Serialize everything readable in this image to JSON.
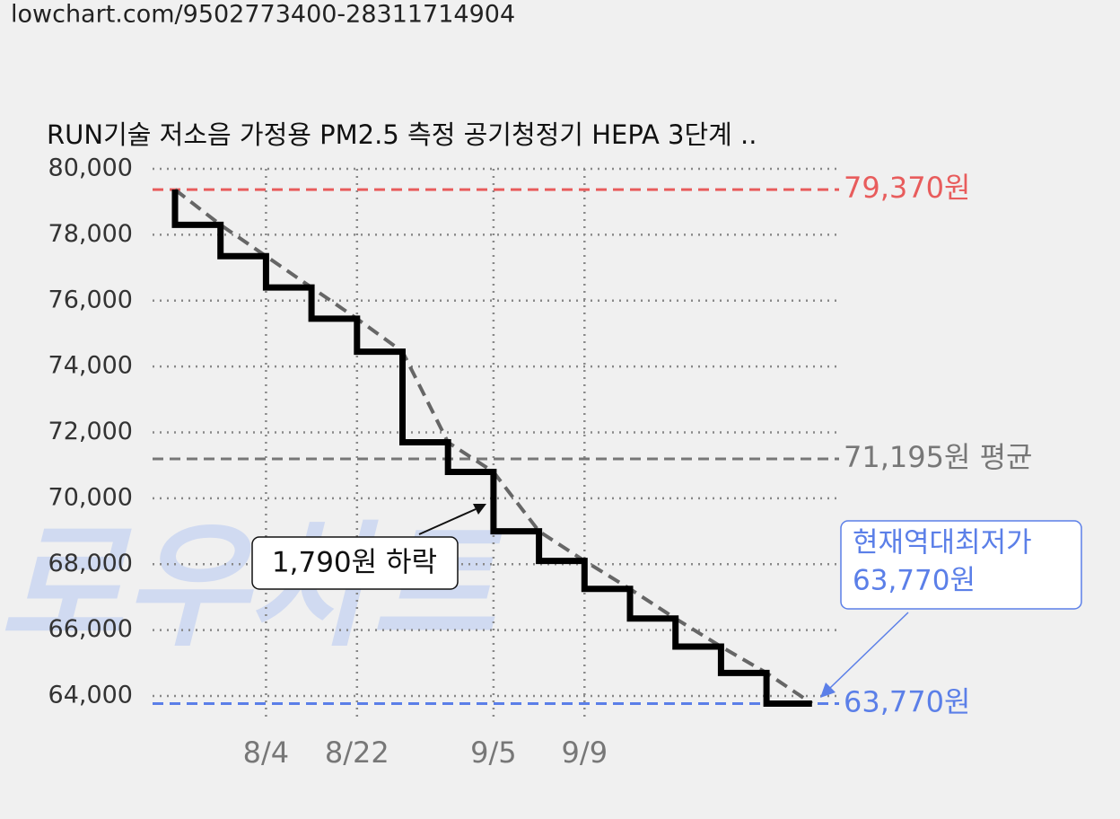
{
  "page": {
    "url": "lowchart.com/9502773400-28311714904",
    "watermark": "로우차트"
  },
  "chart_data": {
    "type": "step",
    "title": "RUN기술 저소음 가정용 PM2.5 측정 공기청정기 HEPA 3단계 ..",
    "categories": [
      null,
      null,
      "8/4",
      null,
      "8/22",
      null,
      null,
      "9/5",
      null,
      "9/9",
      null,
      null,
      null,
      null,
      null
    ],
    "series": [
      {
        "color": "#000000",
        "trend_color": "#666666",
        "values": [
          79370,
          78300,
          77350,
          76400,
          75450,
          74450,
          71700,
          70800,
          69000,
          68100,
          67250,
          66350,
          65500,
          64700,
          63770
        ]
      }
    ],
    "ylim": [
      63300,
      80000
    ],
    "yticks": [
      {
        "value": 64000,
        "label": "64,000"
      },
      {
        "value": 66000,
        "label": "66,000"
      },
      {
        "value": 68000,
        "label": "68,000"
      },
      {
        "value": 70000,
        "label": "70,000"
      },
      {
        "value": 72000,
        "label": "72,000"
      },
      {
        "value": 74000,
        "label": "74,000"
      },
      {
        "value": 76000,
        "label": "76,000"
      },
      {
        "value": 78000,
        "label": "78,000"
      },
      {
        "value": 80000,
        "label": "80,000"
      }
    ],
    "grid": true,
    "ref_lines": [
      {
        "value": 79370,
        "label": "79,370원",
        "color": "#e85c5c"
      },
      {
        "value": 71195,
        "label": "71,195원 평균",
        "color": "#777777"
      },
      {
        "value": 63770,
        "label": "63,770원",
        "color": "#5b7fe8"
      }
    ],
    "annotations": [
      {
        "text": "1,790원 하락"
      },
      {
        "lines": [
          "현재역대최저가",
          "63,770원"
        ],
        "color": "#5b7fe8"
      }
    ]
  }
}
